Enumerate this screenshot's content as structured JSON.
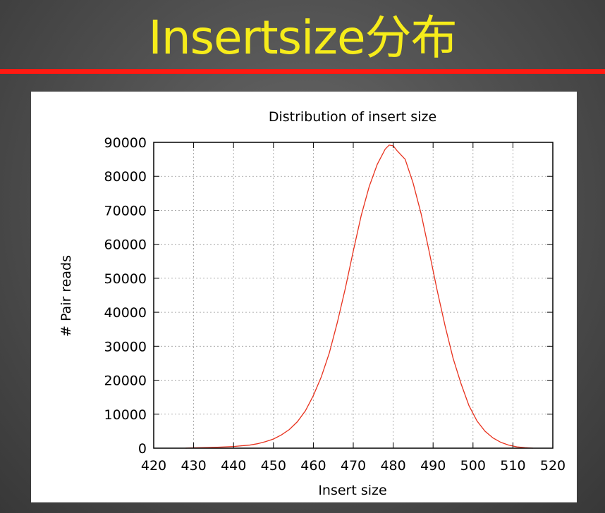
{
  "slide": {
    "title": "Insertsize分布"
  },
  "colors": {
    "title_text": "#f6ec1a",
    "title_rule": "#ff1a12",
    "series_line": "#e8321e"
  },
  "chart_data": {
    "type": "line",
    "title": "Distribution of insert size",
    "xlabel": "Insert size",
    "ylabel": "# Pair reads",
    "xlim": [
      420,
      520
    ],
    "ylim": [
      0,
      90000
    ],
    "xticks": [
      420,
      430,
      440,
      450,
      460,
      470,
      480,
      490,
      500,
      510,
      520
    ],
    "yticks": [
      0,
      10000,
      20000,
      30000,
      40000,
      50000,
      60000,
      70000,
      80000,
      90000
    ],
    "grid": true,
    "legend": "none",
    "series": [
      {
        "x": [
          428,
          430,
          432,
          434,
          436,
          438,
          440,
          442,
          444,
          446,
          448,
          450,
          452,
          454,
          456,
          458,
          460,
          462,
          464,
          466,
          468,
          470,
          472,
          474,
          476,
          478,
          479,
          480,
          481,
          483,
          485,
          487,
          489,
          491,
          493,
          495,
          497,
          499,
          501,
          503,
          505,
          507,
          509,
          511,
          513,
          515
        ],
        "y": [
          0,
          100,
          150,
          200,
          300,
          400,
          500,
          700,
          900,
          1300,
          1900,
          2700,
          3900,
          5500,
          7800,
          11000,
          15500,
          21000,
          28000,
          37000,
          47000,
          58000,
          68500,
          77000,
          83500,
          88000,
          89200,
          89000,
          87500,
          85000,
          78000,
          69000,
          58000,
          46500,
          36000,
          26500,
          19000,
          12500,
          8000,
          5000,
          3000,
          1700,
          900,
          400,
          150,
          0
        ]
      }
    ]
  }
}
